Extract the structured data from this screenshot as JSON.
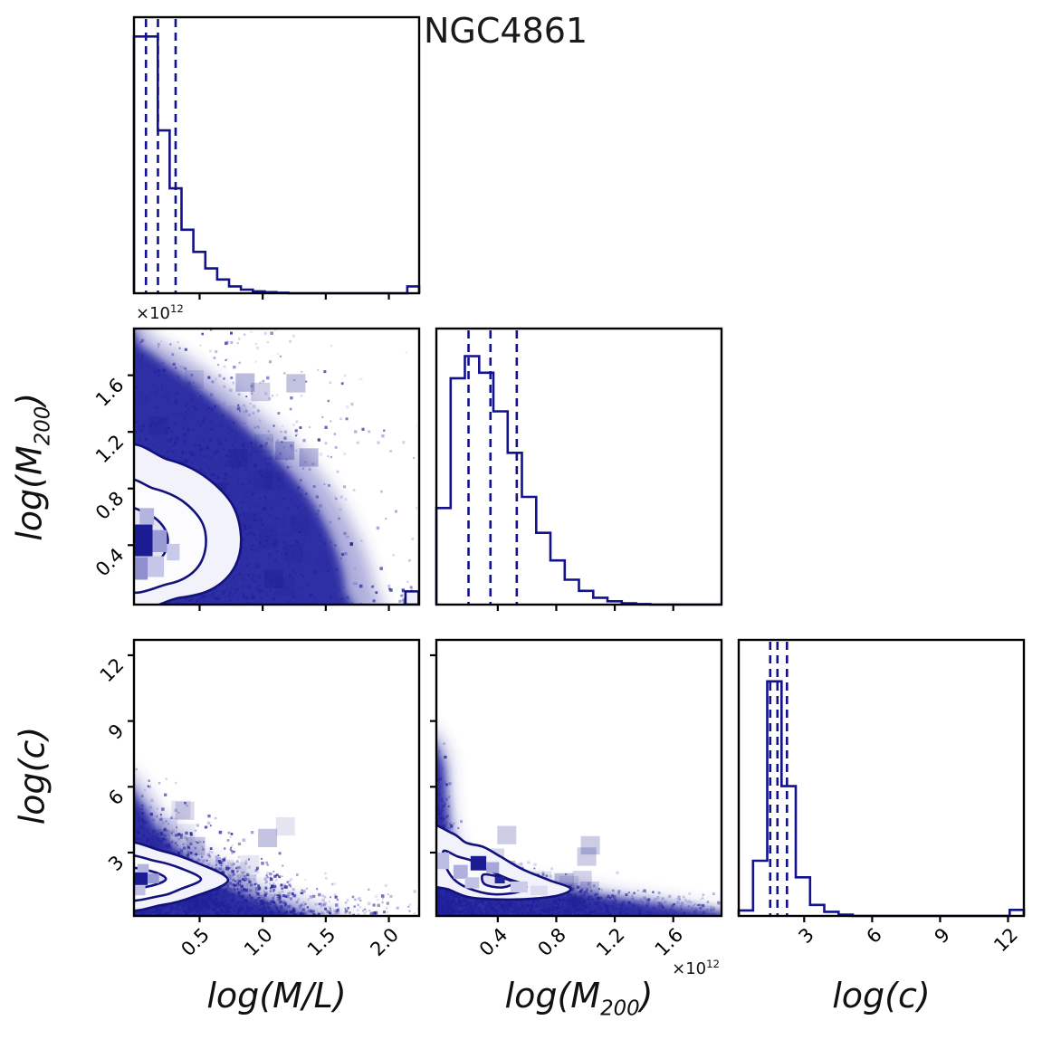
{
  "title": "NGC4861",
  "colors": {
    "axis_black": "#000000",
    "line_navy": "#12128c",
    "contour_navy": "#12127c",
    "dense_fill": "#2a2aa3",
    "scatter": "#20209b",
    "dark_cell": "#1c1c92",
    "text": "#111111"
  },
  "chart_data": {
    "type": "corner_plot",
    "title": "NGC4861",
    "description": "MCMC posterior corner plot with 3 parameters: diagonal = 1D marginal histograms with dashed quantile lines, off-diagonal = 2D density (blue 2D histogram + scatter + contours).",
    "grid": "3x3 lower triangle",
    "parameters": [
      {
        "key": "ml",
        "label": "log(M/L)",
        "range": [
          -0.02,
          2.24
        ],
        "ticks": [
          0.5,
          1.0,
          1.5,
          2.0
        ],
        "tick_labels": [
          "0.5",
          "1.0",
          "1.5",
          "2.0"
        ],
        "offset_text": "",
        "quantile_lines": [
          0.075,
          0.17,
          0.31
        ],
        "hist_heights_norm": [
          0.93,
          0.93,
          0.59,
          0.38,
          0.23,
          0.15,
          0.09,
          0.05,
          0.025,
          0.013,
          0.007,
          0.004,
          0.002,
          0,
          0,
          0,
          0,
          0,
          0,
          0,
          0,
          0,
          0,
          0.025
        ]
      },
      {
        "key": "m200",
        "label": "log(M_200)",
        "range": [
          -0.02,
          1.93
        ],
        "ticks": [
          0.4,
          0.8,
          1.2,
          1.6
        ],
        "tick_labels": [
          "0.4",
          "0.8",
          "1.2",
          "1.6"
        ],
        "offset_text": "×10^12",
        "quantile_lines": [
          0.2,
          0.35,
          0.53
        ],
        "hist_heights_norm": [
          0.35,
          0.82,
          0.9,
          0.84,
          0.7,
          0.55,
          0.39,
          0.26,
          0.16,
          0.09,
          0.05,
          0.025,
          0.012,
          0.005,
          0.002,
          0,
          0,
          0,
          0,
          0
        ]
      },
      {
        "key": "c",
        "label": "log(c)",
        "range": [
          0.11,
          12.7
        ],
        "ticks": [
          3,
          6,
          9,
          12
        ],
        "tick_labels": [
          "3",
          "6",
          "9",
          "12"
        ],
        "offset_text": "",
        "quantile_lines": [
          1.5,
          1.82,
          2.24
        ],
        "hist_heights_norm": [
          0.02,
          0.2,
          0.85,
          0.47,
          0.14,
          0.04,
          0.015,
          0.005,
          0,
          0,
          0,
          0,
          0,
          0,
          0,
          0,
          0,
          0,
          0,
          0.022
        ]
      }
    ],
    "diag_panels": [
      {
        "param": "ml",
        "grid": [
          0,
          0
        ]
      },
      {
        "param": "m200",
        "grid": [
          1,
          1
        ]
      },
      {
        "param": "c",
        "grid": [
          2,
          2
        ]
      }
    ],
    "offdiag_panels": [
      {
        "x": "ml",
        "y": "m200",
        "grid": [
          1,
          0
        ],
        "seed": 7,
        "core": [
          [
            -0.04,
            -0.04
          ],
          [
            0.7,
            -0.04
          ],
          [
            0.74,
            0.06
          ],
          [
            0.7,
            0.22
          ],
          [
            0.62,
            0.38
          ],
          [
            0.5,
            0.53
          ],
          [
            0.36,
            0.67
          ],
          [
            0.22,
            0.79
          ],
          [
            0.1,
            0.88
          ],
          [
            0.03,
            0.93
          ],
          [
            -0.04,
            0.95
          ]
        ],
        "halo": [
          [
            -0.04,
            -0.04
          ],
          [
            0.8,
            -0.04
          ],
          [
            0.84,
            0.07
          ],
          [
            0.78,
            0.26
          ],
          [
            0.67,
            0.45
          ],
          [
            0.53,
            0.61
          ],
          [
            0.37,
            0.75
          ],
          [
            0.22,
            0.87
          ],
          [
            0.09,
            0.95
          ],
          [
            -0.04,
            0.97
          ]
        ],
        "contours": [
          {
            "pts": [
              [
                -0.04,
                0.02
              ],
              [
                0.16,
                0.025
              ],
              [
                0.28,
                0.06
              ],
              [
                0.355,
                0.14
              ],
              [
                0.375,
                0.25
              ],
              [
                0.34,
                0.37
              ],
              [
                0.24,
                0.47
              ],
              [
                0.12,
                0.525
              ],
              [
                -0.04,
                0.545
              ]
            ],
            "fill": "#f2f2fa"
          },
          {
            "pts": [
              [
                -0.04,
                0.07
              ],
              [
                0.12,
                0.075
              ],
              [
                0.21,
                0.12
              ],
              [
                0.25,
                0.2
              ],
              [
                0.24,
                0.295
              ],
              [
                0.17,
                0.375
              ],
              [
                0.07,
                0.42
              ],
              [
                -0.04,
                0.43
              ]
            ],
            "fill": "#fcfcfe"
          },
          {
            "pts": [
              [
                -0.04,
                0.135
              ],
              [
                0.07,
                0.15
              ],
              [
                0.115,
                0.205
              ],
              [
                0.11,
                0.27
              ],
              [
                0.055,
                0.325
              ],
              [
                -0.04,
                0.34
              ]
            ],
            "fill": "#e3e3f3"
          }
        ],
        "cells": [
          [
            0.0,
            0.175,
            0.065,
            0.115,
            "#1c1c92"
          ],
          [
            0.065,
            0.19,
            0.05,
            0.08,
            "#9a9ad4"
          ],
          [
            0.02,
            0.29,
            0.05,
            0.06,
            "#b4b4e0"
          ],
          [
            0.045,
            0.1,
            0.06,
            0.075,
            "#c6c6e8"
          ],
          [
            0.0,
            0.09,
            0.048,
            0.082,
            "#8f8fd0"
          ],
          [
            0.115,
            0.16,
            0.045,
            0.06,
            "#c9c9ea"
          ]
        ],
        "scatter": [
          {
            "kind": "gauss",
            "n": 1800,
            "cx": 0.04,
            "cy": 0.16,
            "sx": 0.3,
            "sy": 0.35
          },
          {
            "kind": "gauss",
            "n": 450,
            "cx": 0.04,
            "cy": 0.18,
            "sx": 0.46,
            "sy": 0.52,
            "faint": true
          },
          {
            "kind": "gauss",
            "n": 24,
            "cx": 0.962,
            "cy": 0.018,
            "sx": 0.02,
            "sy": 0.015
          }
        ],
        "texture": {
          "x": 0,
          "y": 0,
          "w": 0.6,
          "h": 0.8,
          "n": 26
        },
        "extras": [
          {
            "type": "rect",
            "x": 0.952,
            "y": 0.0,
            "w": 0.046,
            "h": 0.048
          }
        ]
      },
      {
        "x": "ml",
        "y": "c",
        "grid": [
          2,
          0
        ],
        "seed": 13,
        "core": [
          [
            -0.04,
            -0.04
          ],
          [
            0.63,
            -0.04
          ],
          [
            0.52,
            0.035
          ],
          [
            0.38,
            0.085
          ],
          [
            0.26,
            0.15
          ],
          [
            0.16,
            0.235
          ],
          [
            0.08,
            0.32
          ],
          [
            0.03,
            0.4
          ],
          [
            -0.04,
            0.445
          ]
        ],
        "halo": [
          [
            -0.04,
            -0.04
          ],
          [
            0.74,
            -0.04
          ],
          [
            0.6,
            0.05
          ],
          [
            0.45,
            0.105
          ],
          [
            0.31,
            0.18
          ],
          [
            0.19,
            0.275
          ],
          [
            0.1,
            0.365
          ],
          [
            0.04,
            0.455
          ],
          [
            -0.04,
            0.5
          ]
        ],
        "contours": [
          {
            "pts": [
              [
                -0.04,
                0.035
              ],
              [
                0.1,
                0.04
              ],
              [
                0.21,
                0.07
              ],
              [
                0.33,
                0.13
              ],
              [
                0.215,
                0.195
              ],
              [
                0.1,
                0.235
              ],
              [
                -0.04,
                0.255
              ]
            ],
            "fill": "#f2f2fa"
          },
          {
            "pts": [
              [
                -0.04,
                0.065
              ],
              [
                0.09,
                0.072
              ],
              [
                0.165,
                0.098
              ],
              [
                0.235,
                0.133
              ],
              [
                0.165,
                0.172
              ],
              [
                0.08,
                0.198
              ],
              [
                -0.04,
                0.212
              ]
            ],
            "fill": "#fcfcfe"
          },
          {
            "pts": [
              [
                -0.04,
                0.098
              ],
              [
                0.055,
                0.108
              ],
              [
                0.112,
                0.134
              ],
              [
                0.058,
                0.163
              ],
              [
                -0.04,
                0.172
              ]
            ],
            "fill": "#dcdcf0"
          }
        ],
        "cells": [
          [
            0.0,
            0.112,
            0.048,
            0.046,
            "#1c1c92"
          ],
          [
            0.048,
            0.118,
            0.04,
            0.035,
            "#9a9ad4"
          ],
          [
            0.012,
            0.158,
            0.04,
            0.03,
            "#b4b4e0"
          ],
          [
            0.0,
            0.075,
            0.04,
            0.035,
            "#c0c0e6"
          ]
        ],
        "scatter": [
          {
            "kind": "wedge",
            "n": 1800,
            "xs": 0.3,
            "y0": 0.04,
            "ys0": 0.17,
            "decay": 0.9
          },
          {
            "kind": "gauss",
            "n": 260,
            "cx": 0.04,
            "cy": 0.12,
            "sx": 0.05,
            "sy": 0.145
          },
          {
            "kind": "gauss",
            "n": 70,
            "cx": 0.55,
            "cy": 0.02,
            "sx": 0.25,
            "sy": 0.02
          },
          {
            "kind": "gauss",
            "n": 14,
            "cx": 0.92,
            "cy": 0.05,
            "sx": 0.07,
            "sy": 0.035,
            "faint": true
          }
        ],
        "texture": {
          "x": 0,
          "y": 0,
          "w": 0.5,
          "h": 0.38,
          "n": 20
        },
        "extras": []
      },
      {
        "x": "m200",
        "y": "c",
        "grid": [
          2,
          1
        ],
        "seed": 21,
        "core": [
          [
            -0.04,
            -0.04
          ],
          [
            1.04,
            -0.04
          ],
          [
            1.0,
            0.012
          ],
          [
            0.85,
            0.032
          ],
          [
            0.65,
            0.062
          ],
          [
            0.45,
            0.092
          ],
          [
            0.28,
            0.108
          ],
          [
            0.15,
            0.128
          ],
          [
            0.085,
            0.185
          ],
          [
            0.05,
            0.29
          ],
          [
            0.035,
            0.42
          ],
          [
            0.02,
            0.56
          ],
          [
            -0.04,
            0.6
          ]
        ],
        "halo": [
          [
            -0.04,
            -0.04
          ],
          [
            1.04,
            -0.02
          ],
          [
            0.86,
            0.045
          ],
          [
            0.66,
            0.078
          ],
          [
            0.46,
            0.112
          ],
          [
            0.29,
            0.132
          ],
          [
            0.165,
            0.152
          ],
          [
            0.1,
            0.21
          ],
          [
            0.065,
            0.31
          ],
          [
            0.05,
            0.45
          ],
          [
            0.035,
            0.6
          ],
          [
            -0.04,
            0.64
          ]
        ],
        "contours": [
          {
            "pts": [
              [
                -0.04,
                0.325
              ],
              [
                0.055,
                0.3
              ],
              [
                0.105,
                0.265
              ],
              [
                0.165,
                0.25
              ],
              [
                0.225,
                0.215
              ],
              [
                0.3,
                0.17
              ],
              [
                0.395,
                0.13
              ],
              [
                0.47,
                0.1
              ],
              [
                0.43,
                0.075
              ],
              [
                0.33,
                0.062
              ],
              [
                0.21,
                0.06
              ],
              [
                0.115,
                0.068
              ],
              [
                0.045,
                0.095
              ],
              [
                -0.04,
                0.135
              ]
            ],
            "fill": "#f2f2fa"
          },
          {
            "pts": [
              [
                0.025,
                0.235
              ],
              [
                0.075,
                0.215
              ],
              [
                0.125,
                0.2
              ],
              [
                0.185,
                0.165
              ],
              [
                0.25,
                0.135
              ],
              [
                0.315,
                0.11
              ],
              [
                0.29,
                0.088
              ],
              [
                0.21,
                0.078
              ],
              [
                0.135,
                0.092
              ],
              [
                0.07,
                0.125
              ],
              [
                0.035,
                0.175
              ]
            ],
            "fill": "#fbfbfe"
          },
          {
            "pts": [
              [
                0.165,
                0.15
              ],
              [
                0.225,
                0.14
              ],
              [
                0.27,
                0.12
              ],
              [
                0.23,
                0.103
              ],
              [
                0.17,
                0.115
              ]
            ],
            "fill": "#e0e0f2"
          }
        ],
        "cells": [
          [
            0.12,
            0.165,
            0.055,
            0.052,
            "#1c1c92"
          ],
          [
            0.205,
            0.118,
            0.035,
            0.024,
            "#22229a"
          ],
          [
            0.06,
            0.135,
            0.05,
            0.05,
            "#b0b0de"
          ],
          [
            0.175,
            0.155,
            0.045,
            0.04,
            "#a6a6da"
          ],
          [
            0.1,
            0.1,
            0.05,
            0.04,
            "#c2c2e6"
          ],
          [
            0.26,
            0.085,
            0.06,
            0.04,
            "#cacaea"
          ],
          [
            0.0,
            0.17,
            0.045,
            0.06,
            "#bcbce4"
          ],
          [
            0.33,
            0.075,
            0.06,
            0.035,
            "#dcdcf1"
          ]
        ],
        "scatter": [
          {
            "kind": "gauss",
            "n": 600,
            "cx": 0.008,
            "cy": 0.1,
            "sx": 0.028,
            "sy": 0.17
          },
          {
            "kind": "wedge",
            "n": 1500,
            "xs": 0.33,
            "y0": 0.03,
            "ys0": 0.075,
            "decay": 1.4
          },
          {
            "kind": "gauss",
            "n": 130,
            "cx": 0.78,
            "cy": 0.035,
            "sx": 0.17,
            "sy": 0.018,
            "faint": true
          }
        ],
        "texture": {
          "x": 0,
          "y": 0,
          "w": 0.55,
          "h": 0.28,
          "n": 18
        },
        "extras": []
      }
    ],
    "axis_label_rows": {
      "x_bottom": [
        "log(M/L)",
        "log(M_200)",
        "log(c)"
      ],
      "y_left": [
        "log(M_200)",
        "log(c)"
      ]
    },
    "legend": "none",
    "gridlines": false
  }
}
